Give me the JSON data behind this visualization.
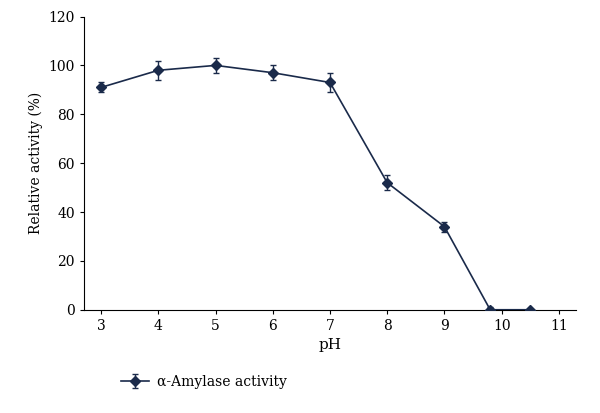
{
  "x": [
    3,
    4,
    5,
    6,
    7,
    8,
    9,
    9.8,
    10.5
  ],
  "y": [
    91,
    98,
    100,
    97,
    93,
    52,
    34,
    0,
    0
  ],
  "yerr": [
    2,
    4,
    3,
    3,
    4,
    3,
    2,
    1,
    0
  ],
  "xlabel": "pH",
  "ylabel": "Relative activity (%)",
  "xlim": [
    2.7,
    11.3
  ],
  "ylim": [
    0,
    120
  ],
  "yticks": [
    0,
    20,
    40,
    60,
    80,
    100,
    120
  ],
  "xticks": [
    3,
    4,
    5,
    6,
    7,
    8,
    9,
    10,
    11
  ],
  "line_color": "#1a2a4a",
  "marker": "D",
  "markersize": 5,
  "linewidth": 1.2,
  "legend_label": "α-Amylase activity",
  "capsize": 2.5,
  "elinewidth": 1.0,
  "background_color": "#ffffff"
}
